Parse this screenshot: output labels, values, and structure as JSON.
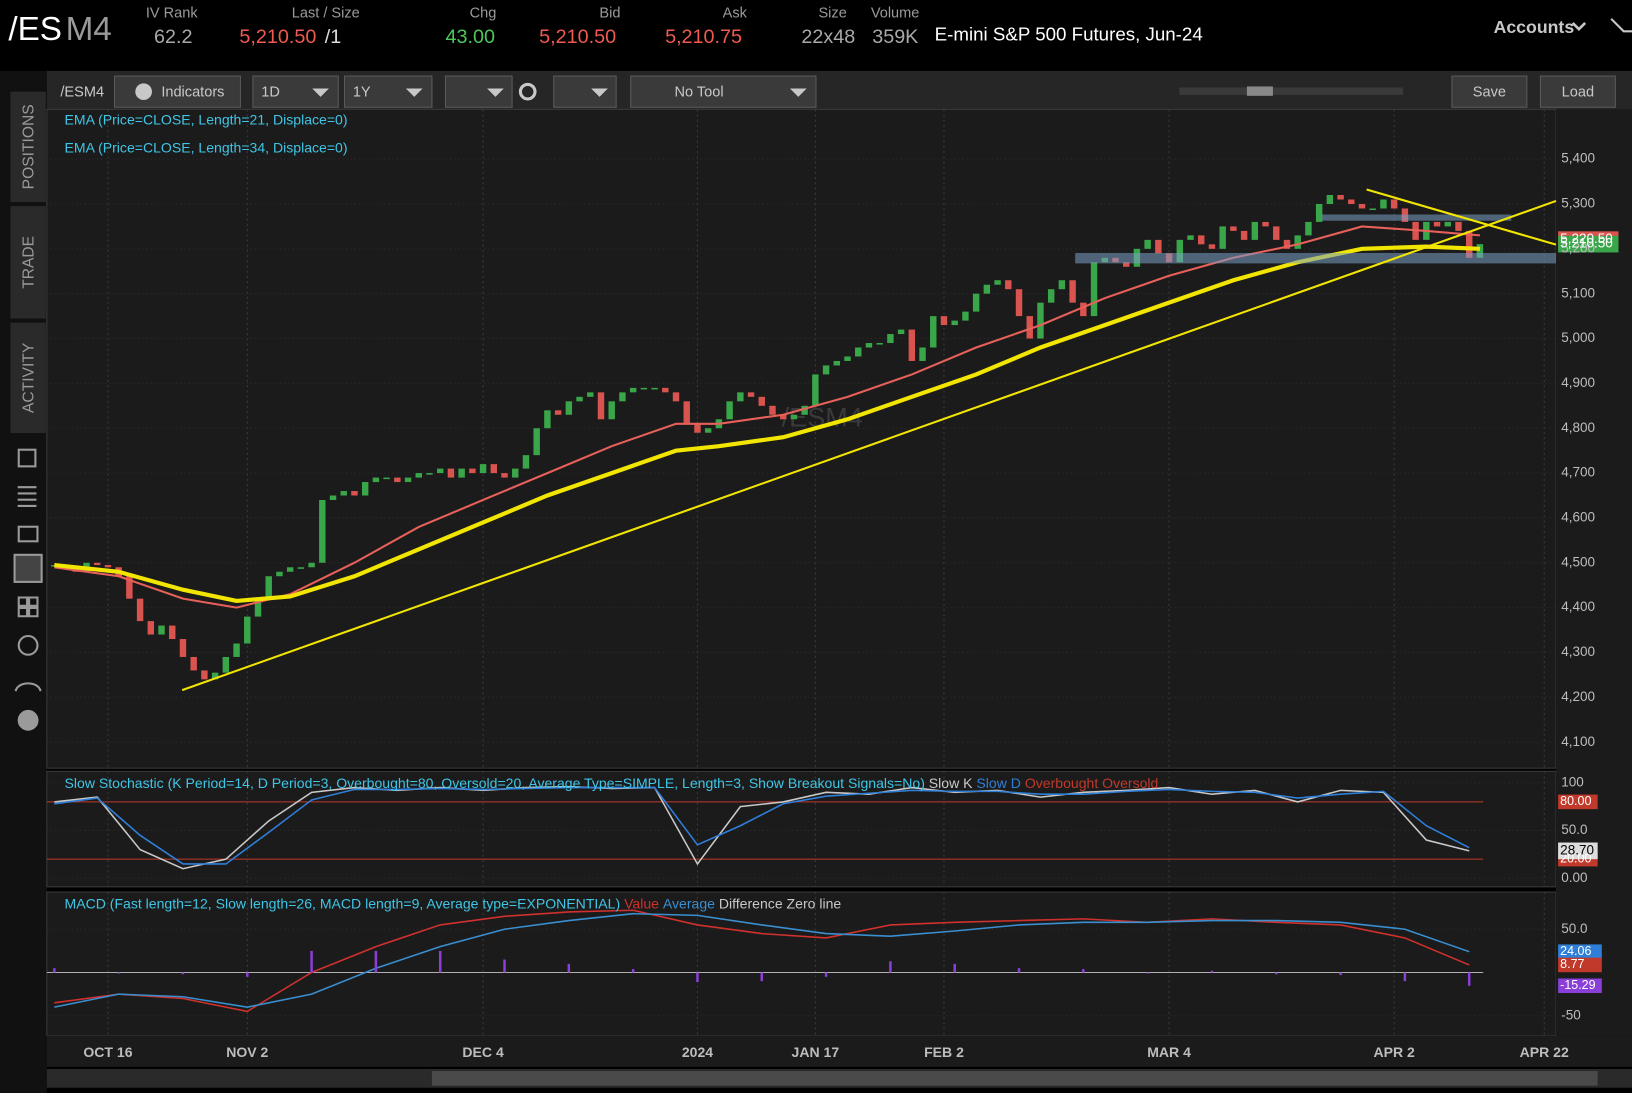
{
  "header": {
    "symbol_main": "/ES",
    "symbol_suffix": "M4",
    "fields": [
      {
        "label": "IV Rank",
        "value": "62.2",
        "color": "#a9a9a9"
      },
      {
        "label": "Last / Size",
        "value": "5,210.50",
        "size": "/1",
        "color": "#f05a50"
      },
      {
        "label": "Chg",
        "value": "43.00",
        "color": "#4cc85a"
      },
      {
        "label": "Bid",
        "value": "5,210.50",
        "color": "#f05a50"
      },
      {
        "label": "Ask",
        "value": "5,210.75",
        "color": "#f05a50"
      },
      {
        "label": "Size",
        "value": "22x48",
        "color": "#a9a9a9"
      },
      {
        "label": "Volume",
        "value": "359K",
        "color": "#a9a9a9"
      }
    ],
    "description": "E-mini S&P 500 Futures, Jun-24",
    "accounts": "Accounts"
  },
  "toolbar": {
    "symbol": "/ESM4",
    "indicators": "Indicators",
    "interval": "1D",
    "range": "1Y",
    "tool": "No Tool",
    "save": "Save",
    "load": "Load"
  },
  "side_tabs": [
    "POSITIONS",
    "TRADE",
    "ACTIVITY"
  ],
  "chart_data": [
    {
      "type": "candlestick",
      "watermark": "/ESM4",
      "up_color": "#3aa64a",
      "down_color": "#d9534f",
      "values": [
        4495,
        4490,
        4480,
        4500,
        4495,
        4490,
        4470,
        4420,
        4370,
        4340,
        4360,
        4330,
        4290,
        4260,
        4240,
        4255,
        4290,
        4320,
        4380,
        4420,
        4470,
        4480,
        4490,
        4490,
        4500,
        4640,
        4650,
        4660,
        4650,
        4680,
        4690,
        4690,
        4680,
        4690,
        4700,
        4700,
        4710,
        4690,
        4710,
        4700,
        4720,
        4700,
        4690,
        4710,
        4740,
        4800,
        4840,
        4830,
        4860,
        4870,
        4880,
        4820,
        4860,
        4880,
        4890,
        4890,
        4890,
        4880,
        4860,
        4810,
        4790,
        4800,
        4820,
        4860,
        4880,
        4870,
        4850,
        4830,
        4820,
        4830,
        4850,
        4920,
        4940,
        4950,
        4960,
        4980,
        4990,
        4990,
        5010,
        5020,
        4950,
        4980,
        5050,
        5030,
        5040,
        5060,
        5100,
        5120,
        5130,
        5110,
        5050,
        5000,
        5080,
        5110,
        5130,
        5080,
        5050,
        5170,
        5180,
        5170,
        5160,
        5200,
        5220,
        5190,
        5170,
        5220,
        5230,
        5210,
        5200,
        5250,
        5240,
        5220,
        5260,
        5250,
        5220,
        5200,
        5230,
        5260,
        5300,
        5320,
        5310,
        5300,
        5290,
        5290,
        5310,
        5290,
        5260,
        5220,
        5260,
        5250,
        5260,
        5240,
        5180,
        5210.5
      ],
      "series": [
        {
          "name": "EMA (Price=CLOSE, Length=21, Displace=0)",
          "color": "#e8605a",
          "x": [
            0,
            6,
            12,
            17,
            22,
            28,
            34,
            40,
            46,
            52,
            58,
            62,
            68,
            74,
            80,
            86,
            92,
            98,
            104,
            110,
            116,
            122,
            128,
            133
          ],
          "values": [
            4490,
            4470,
            4420,
            4400,
            4430,
            4500,
            4580,
            4640,
            4700,
            4760,
            4810,
            4810,
            4830,
            4870,
            4920,
            4980,
            5030,
            5090,
            5140,
            5180,
            5210,
            5250,
            5240,
            5230
          ]
        },
        {
          "name": "EMA (Price=CLOSE, Length=34, Displace=0)",
          "color": "#f2e600",
          "x": [
            0,
            6,
            12,
            17,
            22,
            28,
            34,
            40,
            46,
            52,
            58,
            62,
            68,
            74,
            80,
            86,
            92,
            98,
            104,
            110,
            116,
            122,
            128,
            133
          ],
          "values": [
            4495,
            4480,
            4440,
            4415,
            4425,
            4470,
            4530,
            4590,
            4650,
            4700,
            4750,
            4760,
            4780,
            4820,
            4870,
            4920,
            4980,
            5030,
            5080,
            5130,
            5170,
            5200,
            5205,
            5200
          ]
        }
      ],
      "price_labels": [
        {
          "value": 5220.5,
          "label": "5,220.50",
          "color": "#d9534f"
        },
        {
          "value": 5210.5,
          "label": "5,210.50",
          "color": "#3aa64a"
        }
      ],
      "xlim": [
        -0.7,
        140.1
      ],
      "xticks": [
        {
          "value": 5,
          "label": "OCT 16"
        },
        {
          "value": 18,
          "label": "NOV 2"
        },
        {
          "value": 40,
          "label": "DEC 4"
        },
        {
          "value": 60,
          "label": "2024"
        },
        {
          "value": 71,
          "label": "JAN 17"
        },
        {
          "value": 83,
          "label": "FEB 2"
        },
        {
          "value": 104,
          "label": "MAR 4"
        },
        {
          "value": 125,
          "label": "APR 2"
        },
        {
          "value": 139,
          "label": "APR 22"
        }
      ],
      "ylim": [
        4042,
        5511
      ],
      "yticks": [
        {
          "value": 4100,
          "label": "4,100"
        },
        {
          "value": 4200,
          "label": "4,200"
        },
        {
          "value": 4300,
          "label": "4,300"
        },
        {
          "value": 4400,
          "label": "4,400"
        },
        {
          "value": 4500,
          "label": "4,500"
        },
        {
          "value": 4600,
          "label": "4,600"
        },
        {
          "value": 4700,
          "label": "4,700"
        },
        {
          "value": 4800,
          "label": "4,800"
        },
        {
          "value": 4900,
          "label": "4,900"
        },
        {
          "value": 5000,
          "label": "5,000"
        },
        {
          "value": 5100,
          "label": "5,100"
        },
        {
          "value": 5200,
          "label": "5,200"
        },
        {
          "value": 5300,
          "label": "5,300"
        },
        {
          "value": 5400,
          "label": "5,400"
        }
      ]
    },
    {
      "type": "line",
      "title": "Slow Stochastic (K Period=14, D Period=3, Overbought=80, Oversold=20, Average Type=SIMPLE, Length=3, Show Breakout Signals=No)",
      "series": [
        {
          "name": "Slow K",
          "color": "#c9c9c9",
          "x": [
            0,
            4,
            8,
            12,
            16,
            20,
            24,
            28,
            32,
            36,
            40,
            44,
            48,
            52,
            56,
            60,
            64,
            68,
            72,
            76,
            80,
            84,
            88,
            92,
            96,
            100,
            104,
            108,
            112,
            116,
            120,
            124,
            128,
            132
          ],
          "values": [
            80,
            85,
            30,
            10,
            20,
            60,
            90,
            95,
            92,
            95,
            92,
            95,
            96,
            94,
            95,
            15,
            75,
            80,
            90,
            88,
            95,
            90,
            92,
            85,
            90,
            92,
            95,
            88,
            92,
            80,
            92,
            90,
            40,
            28.7
          ]
        },
        {
          "name": "Slow D",
          "color": "#2f7fd8",
          "x": [
            0,
            4,
            8,
            12,
            16,
            20,
            24,
            28,
            32,
            36,
            40,
            44,
            48,
            52,
            56,
            60,
            64,
            68,
            72,
            76,
            80,
            84,
            88,
            92,
            96,
            100,
            104,
            108,
            112,
            116,
            120,
            124,
            128,
            132
          ],
          "values": [
            78,
            84,
            45,
            15,
            15,
            48,
            82,
            93,
            93,
            94,
            93,
            94,
            95,
            95,
            95,
            35,
            55,
            78,
            86,
            89,
            92,
            91,
            91,
            88,
            88,
            91,
            93,
            91,
            90,
            84,
            88,
            91,
            55,
            32
          ]
        }
      ],
      "levels": [
        {
          "name": "Overbought",
          "value": 80,
          "label": "80.00",
          "color": "#c0392b"
        },
        {
          "name": "Oversold",
          "value": 20,
          "label": "20.00",
          "color": "#c0392b"
        }
      ],
      "last_label": {
        "value": 28.7,
        "label": "28.70"
      },
      "xlim": [
        -0.7,
        140.1
      ],
      "ylim": [
        -9,
        112
      ],
      "yticks": [
        100,
        {
          "value": 50,
          "label": "50.0"
        },
        {
          "value": 0,
          "label": "0.00"
        }
      ]
    },
    {
      "type": "macd",
      "title": "MACD (Fast length=12, Slow length=26, MACD length=9, Average type=EXPONENTIAL)",
      "x": [
        0,
        6,
        12,
        18,
        24,
        30,
        36,
        42,
        48,
        54,
        60,
        66,
        72,
        78,
        84,
        90,
        96,
        102,
        108,
        114,
        120,
        126,
        132
      ],
      "series": [
        {
          "name": "Value",
          "color": "#d0312d",
          "values": [
            -35,
            -25,
            -30,
            -45,
            0,
            30,
            55,
            65,
            70,
            72,
            55,
            45,
            40,
            55,
            58,
            60,
            62,
            58,
            62,
            58,
            55,
            40,
            8.77
          ]
        },
        {
          "name": "Average",
          "color": "#3a8fd0",
          "values": [
            -40,
            -25,
            -28,
            -40,
            -25,
            5,
            30,
            50,
            60,
            68,
            66,
            55,
            45,
            42,
            48,
            55,
            58,
            58,
            60,
            60,
            58,
            50,
            24.06
          ]
        },
        {
          "name": "Difference",
          "color": "#8a3fd8",
          "values": [
            5,
            0,
            -2,
            -5,
            25,
            25,
            25,
            15,
            10,
            4,
            -11,
            -10,
            -5,
            13,
            10,
            5,
            4,
            0,
            2,
            -2,
            -3,
            -10,
            -15.29
          ]
        }
      ],
      "zero_line": {
        "name": "Zero line",
        "value": 0,
        "color": "#b0b0b0"
      },
      "last_labels": [
        {
          "value": 24.06,
          "label": "24.06",
          "color": "#2f7fd8"
        },
        {
          "value": 8.77,
          "label": "8.77",
          "color": "#c0392b"
        },
        {
          "value": -15.29,
          "label": "-15.29",
          "color": "#8a3fd8"
        }
      ],
      "xlim": [
        -0.7,
        140.1
      ],
      "ylim": [
        -73,
        93
      ],
      "yticks": [
        {
          "value": 50,
          "label": "50.0"
        },
        -50
      ]
    }
  ]
}
